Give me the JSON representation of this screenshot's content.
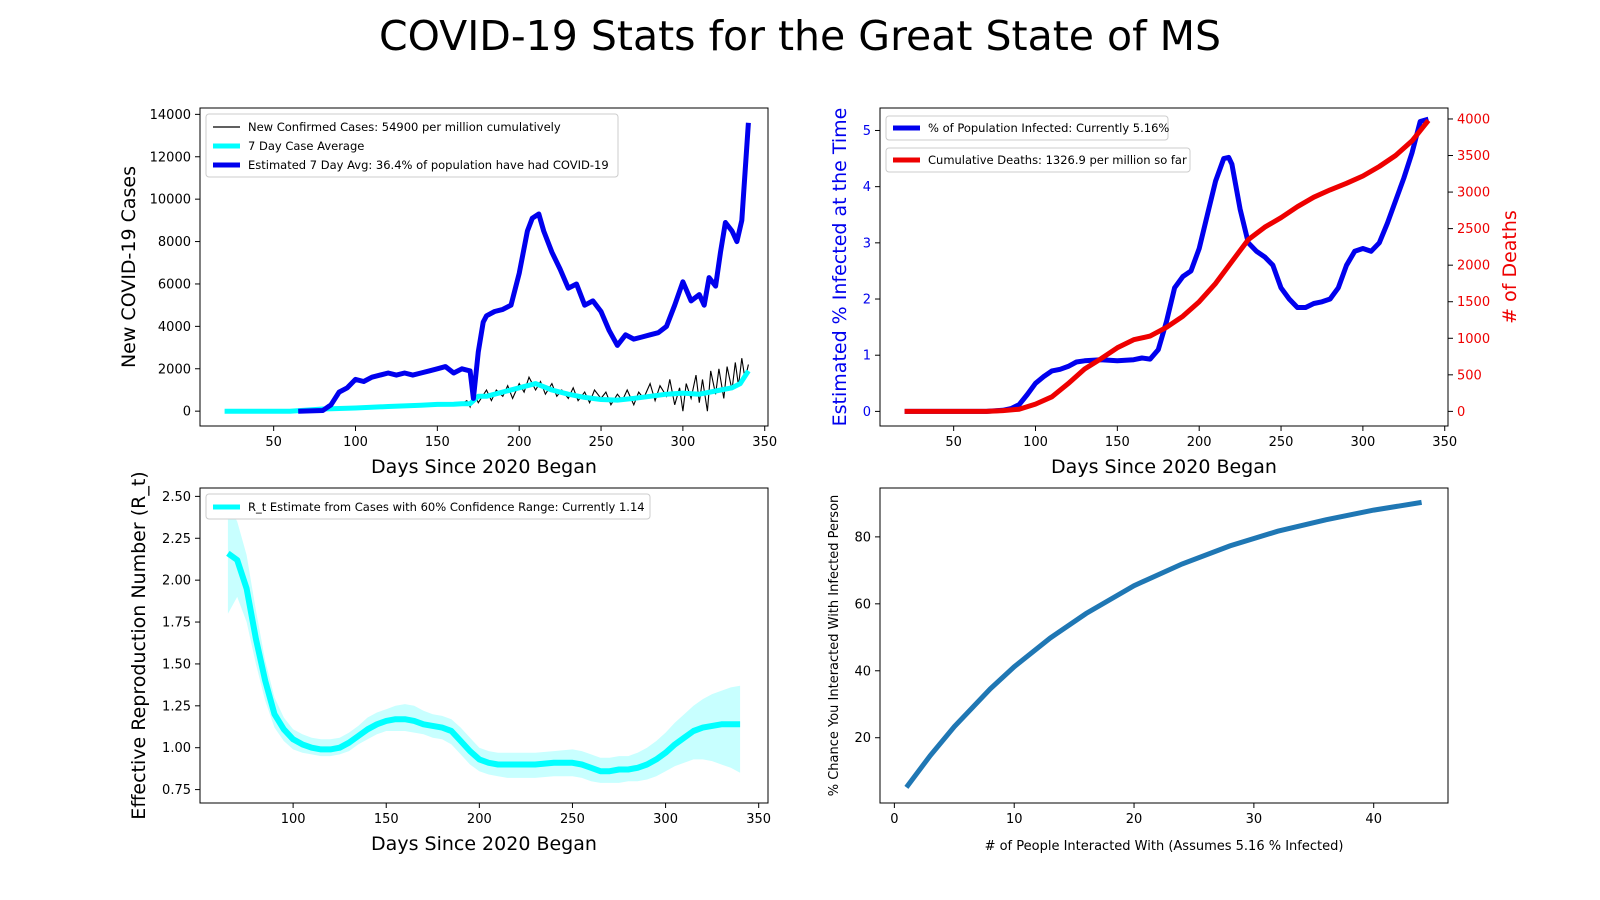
{
  "page_title": "COVID-19 Stats for the Great State of MS",
  "colors": {
    "cases_daily": "#000000",
    "cases_avg": "#00ffff",
    "estimated": "#0000ee",
    "deaths": "#ee0000",
    "rt_line": "#00ffff",
    "rt_band": "#c8ffff",
    "chance_line": "#1f77b4"
  },
  "chart_data": [
    {
      "id": "cases",
      "type": "line",
      "title": "",
      "xlabel": "Days Since 2020 Began",
      "ylabel": "New COVID-19 Cases",
      "xlim": [
        5,
        352
      ],
      "ylim": [
        -700,
        14300
      ],
      "xticks": [
        50,
        100,
        150,
        200,
        250,
        300,
        350
      ],
      "yticks": [
        0,
        2000,
        4000,
        6000,
        8000,
        10000,
        12000,
        14000
      ],
      "legend": {
        "placement": "upper-left",
        "entries": [
          "New Confirmed Cases: 54900 per million cumulatively",
          "7 Day Case Average",
          "Estimated 7 Day Avg: 36.4% of population have had COVID-19"
        ]
      },
      "series": [
        {
          "name": "New Confirmed Cases: 54900 per million cumulatively",
          "style": "thin",
          "x": [
            70,
            80,
            90,
            95,
            100,
            105,
            110,
            115,
            120,
            125,
            130,
            135,
            140,
            145,
            150,
            155,
            160,
            165,
            168,
            170,
            172,
            175,
            180,
            183,
            186,
            190,
            193,
            196,
            200,
            203,
            206,
            210,
            213,
            216,
            220,
            223,
            226,
            230,
            233,
            236,
            240,
            243,
            246,
            250,
            253,
            256,
            260,
            263,
            266,
            270,
            273,
            276,
            280,
            283,
            286,
            290,
            292,
            295,
            298,
            300,
            302,
            305,
            308,
            310,
            312,
            315,
            317,
            320,
            322,
            325,
            327,
            330,
            332,
            334,
            336,
            338,
            340
          ],
          "values": [
            30,
            80,
            130,
            160,
            200,
            180,
            250,
            220,
            280,
            250,
            300,
            260,
            320,
            280,
            340,
            300,
            380,
            350,
            500,
            200,
            900,
            400,
            1000,
            500,
            1000,
            700,
            1200,
            600,
            1300,
            900,
            1600,
            1000,
            1400,
            800,
            1300,
            700,
            1000,
            600,
            1100,
            500,
            900,
            400,
            1000,
            600,
            900,
            300,
            800,
            500,
            1000,
            300,
            900,
            600,
            1300,
            500,
            1200,
            700,
            1500,
            300,
            1100,
            0,
            1300,
            600,
            1700,
            400,
            1500,
            0,
            1900,
            800,
            2000,
            600,
            2100,
            1000,
            2300,
            1200,
            2500,
            1500,
            2200
          ]
        },
        {
          "name": "7 Day Case Average",
          "style": "thick",
          "x": [
            20,
            60,
            80,
            100,
            120,
            140,
            150,
            160,
            165,
            170,
            175,
            180,
            190,
            200,
            210,
            220,
            230,
            240,
            250,
            260,
            270,
            280,
            290,
            300,
            310,
            320,
            330,
            335,
            340
          ],
          "values": [
            0,
            0,
            100,
            150,
            220,
            280,
            320,
            330,
            350,
            350,
            700,
            700,
            900,
            1100,
            1300,
            1000,
            800,
            650,
            550,
            520,
            600,
            700,
            800,
            850,
            800,
            950,
            1100,
            1300,
            1900
          ]
        },
        {
          "name": "Estimated 7 Day Avg: 36.4% of population have had COVID-19",
          "style": "thick",
          "x": [
            65,
            80,
            85,
            90,
            95,
            100,
            105,
            110,
            115,
            120,
            125,
            130,
            135,
            140,
            145,
            150,
            155,
            160,
            165,
            170,
            172,
            175,
            178,
            180,
            185,
            190,
            195,
            200,
            205,
            208,
            212,
            215,
            220,
            225,
            230,
            235,
            240,
            245,
            250,
            255,
            260,
            265,
            270,
            275,
            280,
            285,
            290,
            295,
            300,
            305,
            310,
            313,
            316,
            320,
            323,
            326,
            330,
            333,
            336,
            340
          ],
          "values": [
            0,
            30,
            300,
            900,
            1100,
            1500,
            1400,
            1600,
            1700,
            1800,
            1700,
            1800,
            1700,
            1800,
            1900,
            2000,
            2100,
            1800,
            2000,
            1900,
            600,
            2800,
            4200,
            4500,
            4700,
            4800,
            5000,
            6500,
            8500,
            9100,
            9300,
            8500,
            7500,
            6700,
            5800,
            6000,
            5000,
            5200,
            4700,
            3800,
            3100,
            3600,
            3400,
            3500,
            3600,
            3700,
            4000,
            5000,
            6100,
            5200,
            5500,
            5000,
            6300,
            5900,
            7500,
            8900,
            8500,
            8000,
            9000,
            13600
          ]
        }
      ]
    },
    {
      "id": "infected",
      "type": "line",
      "title": "",
      "xlabel": "Days Since 2020 Began",
      "ylabel": "Estimated % Infected at the Time",
      "ylabel_right": "# of Deaths",
      "xlim": [
        5,
        352
      ],
      "ylim": [
        -0.26,
        5.4
      ],
      "ylim_right": [
        -200,
        4150
      ],
      "xticks": [
        50,
        100,
        150,
        200,
        250,
        300,
        350
      ],
      "yticks": [
        0,
        1,
        2,
        3,
        4,
        5
      ],
      "yticks_right": [
        0,
        500,
        1000,
        1500,
        2000,
        2500,
        3000,
        3500,
        4000
      ],
      "legend": {
        "placement": "upper-left",
        "entries": [
          "% of Population Infected: Currently 5.16%",
          "Cumulative Deaths: 1326.9 per million so far"
        ]
      },
      "series": [
        {
          "name": "% of Population Infected: Currently 5.16%",
          "axis": "left",
          "x": [
            20,
            70,
            80,
            85,
            90,
            95,
            100,
            105,
            110,
            115,
            120,
            125,
            130,
            140,
            150,
            160,
            165,
            170,
            175,
            180,
            185,
            190,
            195,
            200,
            205,
            210,
            215,
            218,
            220,
            225,
            230,
            235,
            240,
            245,
            250,
            255,
            260,
            265,
            270,
            275,
            280,
            285,
            290,
            295,
            300,
            305,
            310,
            315,
            320,
            325,
            330,
            335,
            340
          ],
          "values": [
            0,
            0,
            0.02,
            0.05,
            0.12,
            0.3,
            0.5,
            0.62,
            0.72,
            0.75,
            0.8,
            0.88,
            0.9,
            0.92,
            0.9,
            0.92,
            0.95,
            0.93,
            1.1,
            1.6,
            2.2,
            2.4,
            2.5,
            2.9,
            3.5,
            4.1,
            4.5,
            4.52,
            4.4,
            3.6,
            3.0,
            2.85,
            2.75,
            2.6,
            2.2,
            2.0,
            1.85,
            1.85,
            1.92,
            1.95,
            2.0,
            2.2,
            2.6,
            2.85,
            2.9,
            2.85,
            3.0,
            3.35,
            3.75,
            4.15,
            4.6,
            5.16,
            5.2
          ]
        },
        {
          "name": "Cumulative Deaths: 1326.9 per million so far",
          "axis": "right",
          "x": [
            20,
            70,
            80,
            90,
            100,
            110,
            120,
            130,
            140,
            150,
            160,
            170,
            180,
            190,
            200,
            210,
            220,
            230,
            240,
            250,
            260,
            270,
            280,
            290,
            300,
            310,
            320,
            330,
            340
          ],
          "values": [
            0,
            0,
            10,
            30,
            100,
            200,
            380,
            580,
            720,
            870,
            980,
            1030,
            1150,
            1300,
            1500,
            1750,
            2050,
            2350,
            2520,
            2650,
            2800,
            2930,
            3030,
            3120,
            3220,
            3350,
            3500,
            3700,
            3980
          ]
        }
      ]
    },
    {
      "id": "rt",
      "type": "line",
      "title": "",
      "xlabel": "Days Since 2020 Began",
      "ylabel": "Effective Reproduction Number (R_t)",
      "xlim": [
        50,
        355
      ],
      "ylim": [
        0.67,
        2.55
      ],
      "xticks": [
        100,
        150,
        200,
        250,
        300,
        350
      ],
      "yticks": [
        0.75,
        1.0,
        1.25,
        1.5,
        1.75,
        2.0,
        2.25,
        2.5
      ],
      "legend": {
        "placement": "upper-left",
        "entries": [
          "R_t Estimate from Cases with 60% Confidence Range: Currently 1.14"
        ]
      },
      "series": [
        {
          "name": "R_t Estimate from Cases with 60% Confidence Range: Currently 1.14",
          "x": [
            65,
            70,
            75,
            80,
            85,
            90,
            95,
            100,
            105,
            110,
            115,
            120,
            125,
            130,
            135,
            140,
            145,
            150,
            155,
            160,
            165,
            170,
            175,
            180,
            185,
            190,
            195,
            200,
            205,
            210,
            215,
            220,
            230,
            240,
            250,
            255,
            260,
            265,
            270,
            275,
            280,
            285,
            290,
            295,
            300,
            305,
            310,
            315,
            320,
            325,
            330,
            335,
            340
          ],
          "values": [
            2.16,
            2.12,
            1.95,
            1.65,
            1.4,
            1.2,
            1.11,
            1.05,
            1.02,
            1.0,
            0.99,
            0.99,
            1.0,
            1.03,
            1.07,
            1.11,
            1.14,
            1.16,
            1.17,
            1.17,
            1.16,
            1.14,
            1.13,
            1.12,
            1.1,
            1.04,
            0.98,
            0.93,
            0.91,
            0.9,
            0.9,
            0.9,
            0.9,
            0.91,
            0.91,
            0.9,
            0.88,
            0.86,
            0.86,
            0.87,
            0.87,
            0.88,
            0.9,
            0.93,
            0.97,
            1.02,
            1.06,
            1.1,
            1.12,
            1.13,
            1.14,
            1.14,
            1.14
          ],
          "lower": [
            1.8,
            1.9,
            1.75,
            1.5,
            1.28,
            1.12,
            1.04,
            0.99,
            0.97,
            0.96,
            0.95,
            0.95,
            0.96,
            0.98,
            1.02,
            1.05,
            1.08,
            1.1,
            1.1,
            1.1,
            1.09,
            1.08,
            1.06,
            1.05,
            1.02,
            0.96,
            0.9,
            0.86,
            0.84,
            0.83,
            0.82,
            0.82,
            0.82,
            0.83,
            0.83,
            0.82,
            0.8,
            0.79,
            0.79,
            0.79,
            0.8,
            0.8,
            0.81,
            0.83,
            0.86,
            0.89,
            0.91,
            0.93,
            0.93,
            0.92,
            0.9,
            0.88,
            0.85
          ],
          "upper": [
            2.45,
            2.35,
            2.15,
            1.82,
            1.52,
            1.3,
            1.18,
            1.11,
            1.08,
            1.06,
            1.05,
            1.05,
            1.06,
            1.09,
            1.13,
            1.18,
            1.21,
            1.23,
            1.25,
            1.26,
            1.25,
            1.22,
            1.2,
            1.19,
            1.17,
            1.12,
            1.06,
            1.0,
            0.98,
            0.97,
            0.97,
            0.97,
            0.97,
            0.98,
            0.99,
            0.98,
            0.96,
            0.94,
            0.94,
            0.95,
            0.95,
            0.97,
            1.0,
            1.04,
            1.09,
            1.15,
            1.2,
            1.25,
            1.29,
            1.32,
            1.34,
            1.36,
            1.37
          ]
        }
      ]
    },
    {
      "id": "chance",
      "type": "line",
      "title": "",
      "xlabel": "# of People Interacted With (Assumes 5.16 % Infected)",
      "ylabel": "% Chance You Interacted With Infected Person",
      "xlim": [
        -1.2,
        46.2
      ],
      "ylim": [
        0.5,
        94.6
      ],
      "xticks": [
        0,
        10,
        20,
        30,
        40
      ],
      "yticks": [
        20,
        40,
        60,
        80
      ],
      "infection_rate": 0.0516,
      "series": [
        {
          "name": "",
          "x": [
            1,
            3,
            5,
            8,
            10,
            13,
            16,
            20,
            24,
            28,
            32,
            36,
            40,
            44
          ],
          "values": [
            5.16,
            14.7,
            23.3,
            34.6,
            41.2,
            49.8,
            57.1,
            65.4,
            71.9,
            77.3,
            81.7,
            85.1,
            88.0,
            90.3
          ]
        }
      ]
    }
  ]
}
